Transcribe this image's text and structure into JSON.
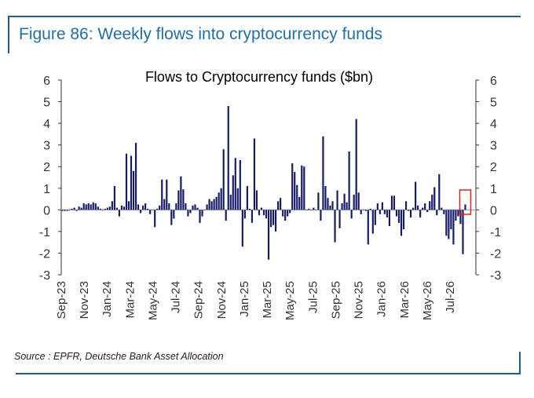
{
  "figure": {
    "title": "Figure 86: Weekly flows into cryptocurrency funds",
    "source": "Source : EPFR, Deutsche Bank Asset Allocation"
  },
  "colors": {
    "bar": "#141a66",
    "frame": "#1f5b8f",
    "figure_title": "#1f6fa8",
    "highlight_box": "#d9262a",
    "zero_line": "#a9b4d0"
  },
  "chart_data": {
    "type": "bar",
    "title": "Flows to Cryptocurrency funds ($bn)",
    "xlabel": "",
    "ylabel": "",
    "ylim": [
      -3,
      6
    ],
    "yticks": [
      "-3",
      "-2",
      "-1",
      "0",
      "1",
      "2",
      "3",
      "4",
      "5",
      "6"
    ],
    "secondary_axis": true,
    "x_tick_labels": [
      "Sep-23",
      "Nov-23",
      "Jan-24",
      "Mar-24",
      "May-24",
      "Jul-24",
      "Sep-24",
      "Nov-24",
      "Jan-25",
      "Mar-25",
      "May-25",
      "Jul-25",
      "Sep-25",
      "Nov-25",
      "Jan-26",
      "Mar-26",
      "May-26",
      "Jul-26"
    ],
    "annotation": "latest week highlighted with red box",
    "values": [
      -0.05,
      -0.05,
      -0.05,
      0.0,
      0.05,
      0.1,
      -0.05,
      0.15,
      0.1,
      0.3,
      0.25,
      0.3,
      0.25,
      0.35,
      0.3,
      0.15,
      0.05,
      0.0,
      0.05,
      0.1,
      0.15,
      0.4,
      1.1,
      0.1,
      -0.3,
      0.2,
      0.15,
      2.6,
      0.4,
      2.5,
      1.8,
      3.1,
      0.25,
      -0.15,
      0.2,
      0.3,
      0.05,
      -0.2,
      0.0,
      -0.8,
      0.05,
      0.2,
      1.4,
      0.5,
      1.4,
      0.3,
      -0.7,
      -0.4,
      0.3,
      0.9,
      1.55,
      0.95,
      0.3,
      -0.3,
      -0.15,
      0.2,
      0.25,
      0.1,
      -0.6,
      -0.3,
      0.0,
      0.25,
      0.5,
      0.4,
      0.5,
      0.6,
      0.8,
      1.0,
      2.8,
      -0.5,
      4.8,
      0.7,
      1.6,
      2.4,
      1.0,
      2.3,
      -1.7,
      -0.4,
      1.1,
      0.05,
      -0.6,
      3.3,
      0.9,
      -0.25,
      0.1,
      -0.25,
      -0.4,
      -2.3,
      -0.8,
      -0.7,
      -1.0,
      0.4,
      0.55,
      -0.3,
      -0.5,
      -0.3,
      -0.15,
      2.15,
      1.75,
      1.15,
      0.6,
      2.05,
      2.0,
      0.0,
      0.05,
      0.0,
      0.1,
      0.0,
      0.8,
      -0.5,
      3.4,
      1.1,
      0.55,
      0.2,
      0.4,
      -1.5,
      0.9,
      -0.85,
      0.3,
      0.75,
      0.35,
      2.7,
      -0.4,
      0.7,
      4.2,
      0.8,
      -0.2,
      0.0,
      -0.05,
      -1.6,
      0.05,
      -1.1,
      -0.7,
      0.3,
      -0.2,
      0.35,
      -0.2,
      -0.35,
      -0.75,
      0.65,
      0.65,
      -0.3,
      -0.6,
      -1.2,
      -0.9,
      0.4,
      -0.05,
      -0.35,
      0.1,
      1.3,
      0.2,
      -0.35,
      0.1,
      0.3,
      -0.1,
      0.4,
      0.7,
      1.05,
      -0.25,
      1.65,
      0.1,
      -0.2,
      -1.2,
      -1.35,
      -0.9,
      -1.6,
      -0.5,
      -0.3,
      -0.65,
      -2.05,
      0.25
    ]
  }
}
